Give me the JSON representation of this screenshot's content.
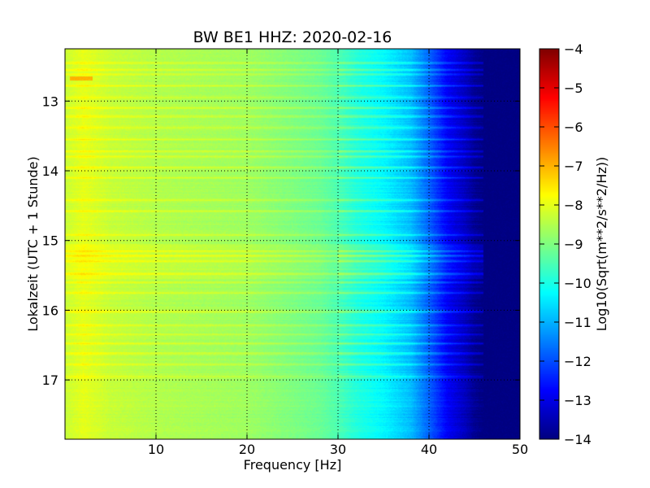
{
  "chart_data": {
    "type": "heatmap",
    "title": "BW BE1 HHZ: 2020-02-16",
    "xlabel": "Frequency [Hz]",
    "ylabel": "Lokalzeit (UTC + 1 Stunde)",
    "colorbar_label": "Log10(Sqrt(m**2/s**2/Hz))",
    "xlim": [
      0,
      50
    ],
    "ylim": [
      12.25,
      17.85
    ],
    "y_inverted": true,
    "color_range": [
      -14,
      -4
    ],
    "colormap": "jet",
    "x_ticks": [
      10,
      20,
      30,
      40,
      50
    ],
    "x_tick_labels": [
      "10",
      "20",
      "30",
      "40",
      "50"
    ],
    "y_ticks": [
      13,
      14,
      15,
      16,
      17
    ],
    "y_tick_labels": [
      "13",
      "14",
      "15",
      "16",
      "17"
    ],
    "colorbar_ticks": [
      -4,
      -5,
      -6,
      -7,
      -8,
      -9,
      -10,
      -11,
      -12,
      -13,
      -14
    ],
    "colorbar_tick_labels": [
      "−4",
      "−5",
      "−6",
      "−7",
      "−8",
      "−9",
      "−10",
      "−11",
      "−12",
      "−13",
      "−14"
    ],
    "grid": true,
    "grid_style": "dotted",
    "spectrum_profile": {
      "frequency_hz": [
        0,
        2,
        5,
        10,
        15,
        20,
        25,
        28,
        30,
        32,
        35,
        38,
        40,
        42,
        44,
        45,
        46,
        50
      ],
      "log10_amplitude": [
        -8.3,
        -8.0,
        -8.3,
        -8.5,
        -8.6,
        -8.7,
        -9.0,
        -9.2,
        -9.5,
        -9.9,
        -10.3,
        -10.9,
        -11.8,
        -12.8,
        -13.4,
        -13.8,
        -14.0,
        -14.0
      ]
    },
    "bright_bands_local_time": [
      12.45,
      12.55,
      12.62,
      12.78,
      12.95,
      13.1,
      13.22,
      13.38,
      13.55,
      13.72,
      13.8,
      13.95,
      14.1,
      14.42,
      14.58,
      14.92,
      15.15,
      15.22,
      15.3,
      15.48,
      15.6,
      15.75,
      16.02,
      16.22,
      16.35,
      16.48,
      16.62,
      16.78,
      16.95
    ],
    "hot_spot": {
      "frequency_hz": [
        0.5,
        3.0
      ],
      "local_time": 12.68,
      "log10_amplitude": -7.0
    },
    "colors": {
      "axis": "#000000",
      "grid": "#000000",
      "background": "#ffffff"
    }
  }
}
